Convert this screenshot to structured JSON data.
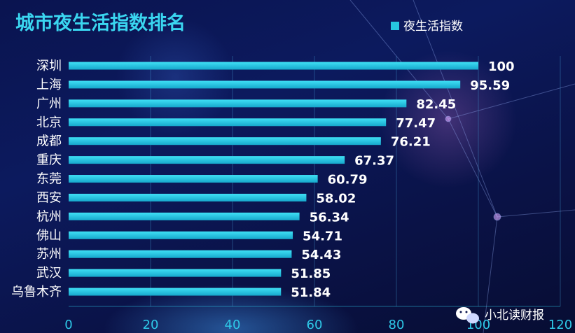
{
  "chart_data": {
    "type": "bar",
    "orientation": "horizontal",
    "title": "城市夜生活指数排名",
    "legend": {
      "label": "夜生活指数",
      "placement": "top-right"
    },
    "categories": [
      "深圳",
      "上海",
      "广州",
      "北京",
      "成都",
      "重庆",
      "东莞",
      "西安",
      "杭州",
      "佛山",
      "苏州",
      "武汉",
      "乌鲁木齐"
    ],
    "series": [
      {
        "name": "夜生活指数",
        "values": [
          100,
          95.59,
          82.45,
          77.47,
          76.21,
          67.37,
          60.79,
          58.02,
          56.34,
          54.71,
          54.43,
          51.85,
          51.84
        ]
      }
    ],
    "value_labels": [
      "100",
      "95.59",
      "82.45",
      "77.47",
      "76.21",
      "67.37",
      "60.79",
      "58.02",
      "56.34",
      "54.71",
      "54.43",
      "51.85",
      "51.84"
    ],
    "xlim": [
      0,
      120
    ],
    "x_ticks": [
      0,
      20,
      40,
      60,
      80,
      100,
      120
    ],
    "x_tick_labels": [
      "0",
      "20",
      "40",
      "60",
      "80",
      "100",
      "120"
    ],
    "grid": "vertical",
    "colors": {
      "bar": "#26c6e0",
      "title": "#3ad6f0",
      "tick": "#2ec9e8",
      "label": "#ffffff"
    }
  },
  "watermark": {
    "text": "小北读财报",
    "icon": "wechat-icon"
  }
}
